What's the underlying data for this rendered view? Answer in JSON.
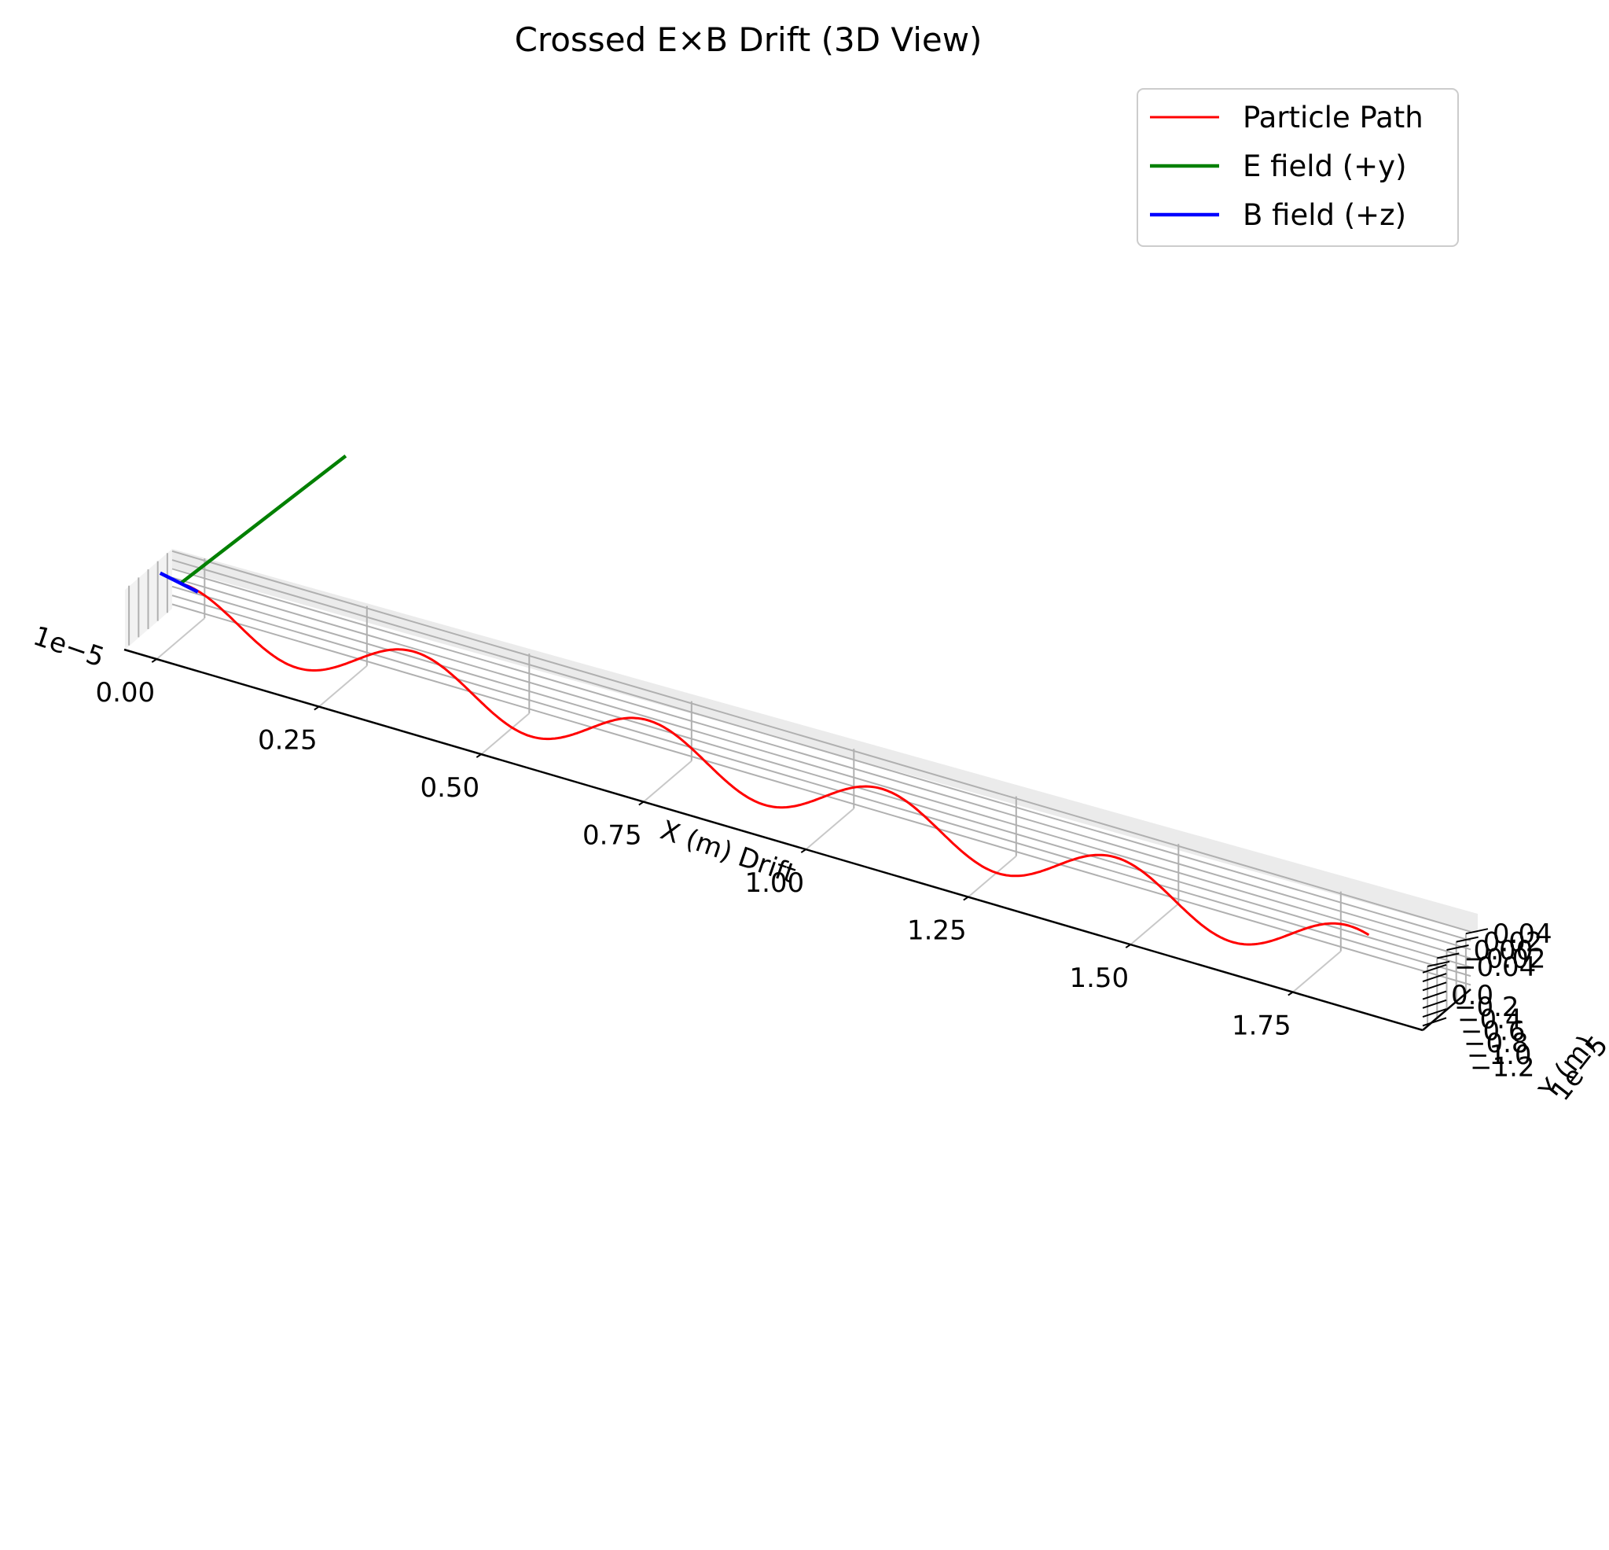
{
  "chart_data": {
    "type": "line",
    "view": "3d",
    "title": "Crossed E×B Drift (3D View)",
    "xlabel": "X (m) Drift",
    "ylabel": "Y (m)",
    "zlabel": "",
    "x_offset_label": "1e−5",
    "z_offset_label": "1e−5",
    "x_ticks": [
      "0.00",
      "0.25",
      "0.50",
      "0.75",
      "1.00",
      "1.25",
      "1.50",
      "1.75"
    ],
    "x_tick_values": [
      0.0,
      0.25,
      0.5,
      0.75,
      1.0,
      1.25,
      1.5,
      1.75
    ],
    "y_ticks": [
      "0.04",
      "0.02",
      "0.00",
      "−0.02",
      "−0.04"
    ],
    "y_tick_values": [
      0.04,
      0.02,
      0.0,
      -0.02,
      -0.04
    ],
    "z_ticks": [
      "0.0",
      "−0.2",
      "−0.4",
      "−0.6",
      "−0.8",
      "−1.0",
      "−1.2"
    ],
    "z_tick_values": [
      0.0,
      -0.2,
      -0.4,
      -0.6,
      -0.8,
      -1.0,
      -1.2
    ],
    "xlim": [
      -0.05,
      1.95
    ],
    "ylim": [
      -0.05,
      0.05
    ],
    "zlim": [
      -1.3,
      0.05
    ],
    "grid": true,
    "legend_position": "top-right",
    "series": [
      {
        "name": "Particle Path",
        "color": "#ff0000",
        "kind": "cycloid",
        "x_range": [
          0.0,
          1.83
        ],
        "cusps_x": [
          0.0,
          0.36,
          0.72,
          1.08,
          1.44
        ],
        "y_amplitude": 0.0
      },
      {
        "name": "E field (+y)",
        "color": "#008000",
        "kind": "vector",
        "from": [
          0.0,
          0.0,
          0.0
        ],
        "to": [
          0.0,
          0.5,
          0.0
        ]
      },
      {
        "name": "B field (+z)",
        "color": "#0000ff",
        "kind": "vector",
        "from": [
          0.0,
          0.0,
          0.0
        ],
        "to": [
          0.0,
          0.0,
          0.5
        ]
      }
    ]
  }
}
